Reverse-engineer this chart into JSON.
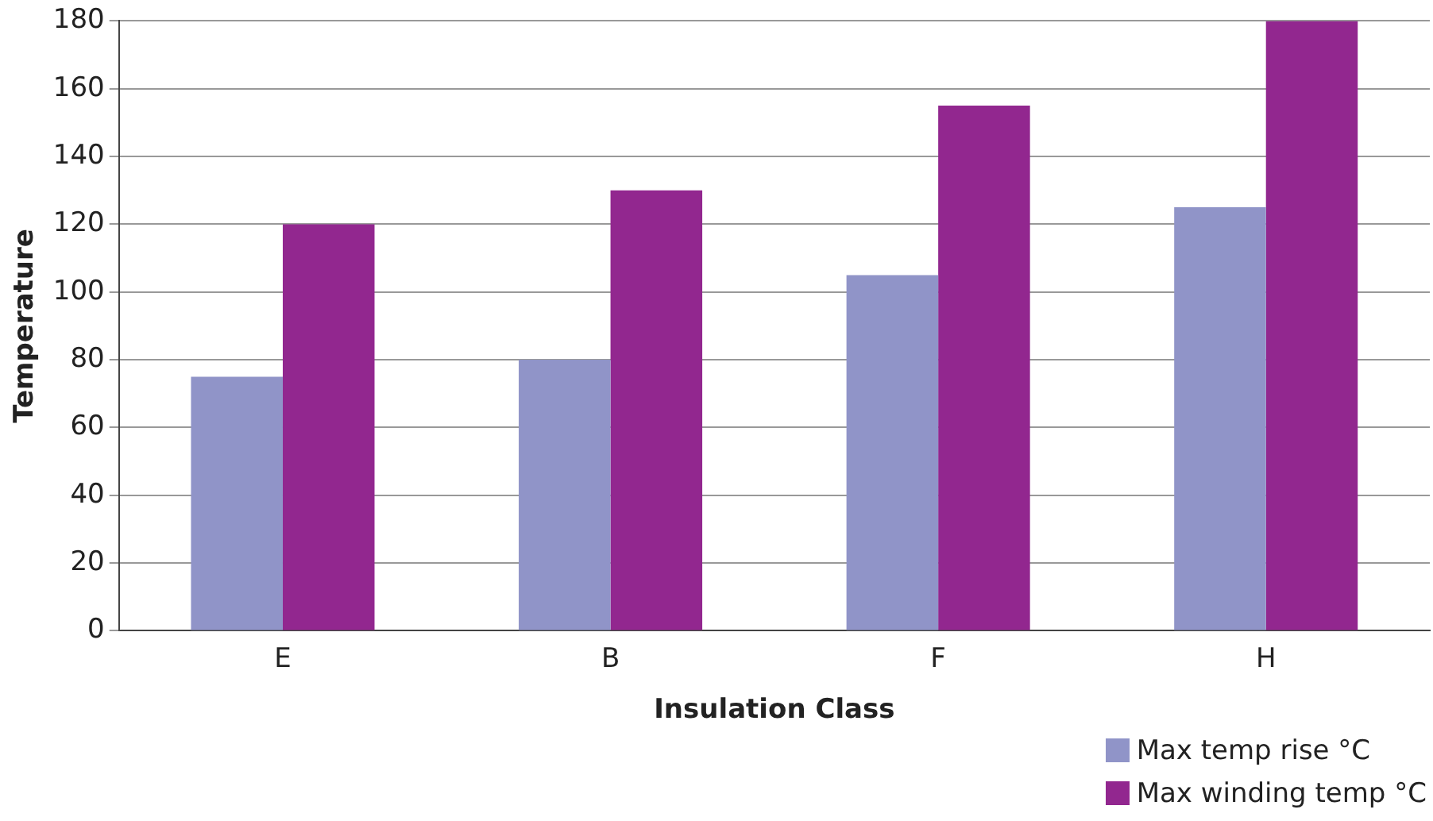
{
  "chart_data": {
    "type": "bar",
    "xlabel": "Insulation Class",
    "ylabel": "Temperature",
    "categories": [
      "E",
      "B",
      "F",
      "H"
    ],
    "series": [
      {
        "name": "Max temp rise °C",
        "color": "#9094c8",
        "values": [
          75,
          80,
          105,
          125
        ]
      },
      {
        "name": "Max winding temp °C",
        "color": "#92278f",
        "values": [
          120,
          130,
          155,
          180
        ]
      }
    ],
    "ylim": [
      0,
      180
    ],
    "yticks": [
      0,
      20,
      40,
      60,
      80,
      100,
      120,
      140,
      160,
      180
    ],
    "grid": "y",
    "legend": "bottom right"
  }
}
